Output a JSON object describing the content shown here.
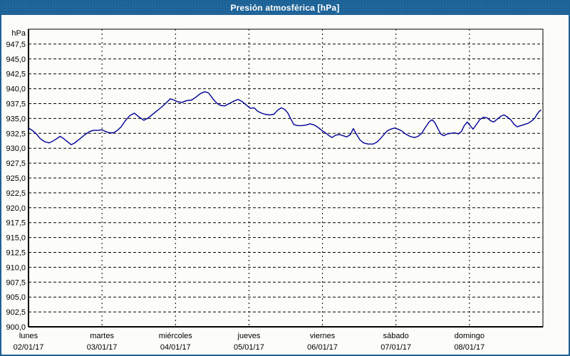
{
  "window": {
    "title": "Presión atmosférica [hPa]"
  },
  "colors": {
    "titlebar": "#1c6296",
    "border": "#1c6296",
    "background": "#fcfcf8",
    "line": "#000099",
    "grid": "#000000",
    "text": "#000000"
  },
  "chart_data": {
    "type": "line",
    "title": "Presión atmosférica [hPa]",
    "unit_label": "hPa",
    "grid": true,
    "legend": "none",
    "xlim": [
      0,
      7
    ],
    "ylim": [
      900,
      950
    ],
    "ytick_step": 2.5,
    "ytick_labels": [
      "947,5",
      "945,0",
      "942,5",
      "940,0",
      "937,5",
      "935,0",
      "932,5",
      "930,0",
      "927,5",
      "925,0",
      "922,5",
      "920,0",
      "917,5",
      "915,0",
      "912,5",
      "910,0",
      "907,5",
      "905,0",
      "902,5",
      "900,0"
    ],
    "x_axis_days": [
      {
        "name": "lunes",
        "date": "02/01/17"
      },
      {
        "name": "martes",
        "date": "03/01/17"
      },
      {
        "name": "miércoles",
        "date": "04/01/17"
      },
      {
        "name": "jueves",
        "date": "05/01/17"
      },
      {
        "name": "viernes",
        "date": "06/01/17"
      },
      {
        "name": "sábado",
        "date": "07/01/17"
      },
      {
        "name": "domingo",
        "date": "08/01/17"
      }
    ],
    "series": [
      {
        "name": "Presión atmosférica",
        "x_unit": "days_since_mon_00h",
        "y_unit": "hPa",
        "x": [
          0.0,
          0.05,
          0.1,
          0.16,
          0.22,
          0.28,
          0.33,
          0.37,
          0.43,
          0.47,
          0.52,
          0.58,
          0.63,
          0.67,
          0.72,
          0.77,
          0.83,
          0.88,
          0.94,
          1.0,
          1.05,
          1.1,
          1.16,
          1.21,
          1.26,
          1.31,
          1.38,
          1.44,
          1.5,
          1.57,
          1.62,
          1.67,
          1.73,
          1.81,
          1.87,
          1.93,
          1.98,
          2.03,
          2.09,
          2.15,
          2.22,
          2.28,
          2.34,
          2.4,
          2.45,
          2.51,
          2.56,
          2.61,
          2.67,
          2.73,
          2.79,
          2.85,
          2.9,
          2.96,
          3.02,
          3.07,
          3.12,
          3.17,
          3.22,
          3.28,
          3.34,
          3.39,
          3.44,
          3.49,
          3.53,
          3.57,
          3.61,
          3.66,
          3.72,
          3.78,
          3.83,
          3.89,
          3.94,
          3.99,
          4.04,
          4.09,
          4.13,
          4.18,
          4.23,
          4.28,
          4.33,
          4.38,
          4.42,
          4.46,
          4.51,
          4.56,
          4.62,
          4.69,
          4.74,
          4.78,
          4.83,
          4.88,
          4.93,
          4.98,
          5.03,
          5.08,
          5.13,
          5.19,
          5.25,
          5.3,
          5.35,
          5.4,
          5.45,
          5.49,
          5.53,
          5.57,
          5.61,
          5.65,
          5.7,
          5.75,
          5.8,
          5.85,
          5.89,
          5.93,
          5.97,
          6.01,
          6.05,
          6.09,
          6.14,
          6.19,
          6.24,
          6.29,
          6.33,
          6.38,
          6.43,
          6.47,
          6.51,
          6.56,
          6.61,
          6.65,
          6.7,
          6.75,
          6.8,
          6.85,
          6.89,
          6.92,
          6.95,
          6.97
        ],
        "y": [
          933.4,
          933.0,
          932.5,
          931.6,
          931.1,
          930.9,
          931.2,
          931.5,
          932.0,
          931.7,
          931.2,
          930.6,
          930.9,
          931.3,
          931.8,
          932.3,
          932.8,
          933.0,
          933.0,
          933.1,
          932.8,
          932.6,
          932.6,
          933.0,
          933.6,
          934.5,
          935.5,
          935.9,
          935.3,
          934.7,
          935.0,
          935.5,
          936.1,
          936.9,
          937.6,
          938.3,
          938.1,
          937.8,
          937.7,
          938.0,
          938.1,
          938.6,
          939.2,
          939.5,
          939.3,
          938.3,
          937.6,
          937.2,
          937.1,
          937.5,
          937.9,
          938.2,
          937.9,
          937.3,
          936.7,
          936.8,
          936.2,
          935.9,
          935.7,
          935.6,
          935.7,
          936.4,
          936.8,
          936.5,
          935.9,
          934.9,
          934.0,
          933.8,
          933.8,
          933.9,
          934.1,
          933.9,
          933.5,
          933.0,
          932.6,
          932.1,
          931.8,
          932.2,
          932.3,
          932.1,
          931.9,
          932.3,
          933.3,
          932.4,
          931.4,
          930.9,
          930.7,
          930.7,
          931.0,
          931.5,
          932.2,
          932.9,
          933.2,
          933.4,
          933.2,
          932.9,
          932.4,
          932.0,
          931.8,
          932.0,
          932.5,
          933.5,
          934.4,
          934.8,
          934.3,
          933.3,
          932.4,
          932.1,
          932.4,
          932.5,
          932.6,
          932.4,
          932.8,
          933.8,
          934.4,
          933.8,
          933.2,
          933.9,
          934.8,
          935.2,
          935.1,
          934.6,
          934.4,
          934.9,
          935.4,
          935.6,
          935.3,
          934.8,
          934.0,
          933.6,
          933.8,
          934.0,
          934.2,
          934.6,
          935.1,
          935.7,
          936.2,
          936.4
        ]
      }
    ]
  }
}
